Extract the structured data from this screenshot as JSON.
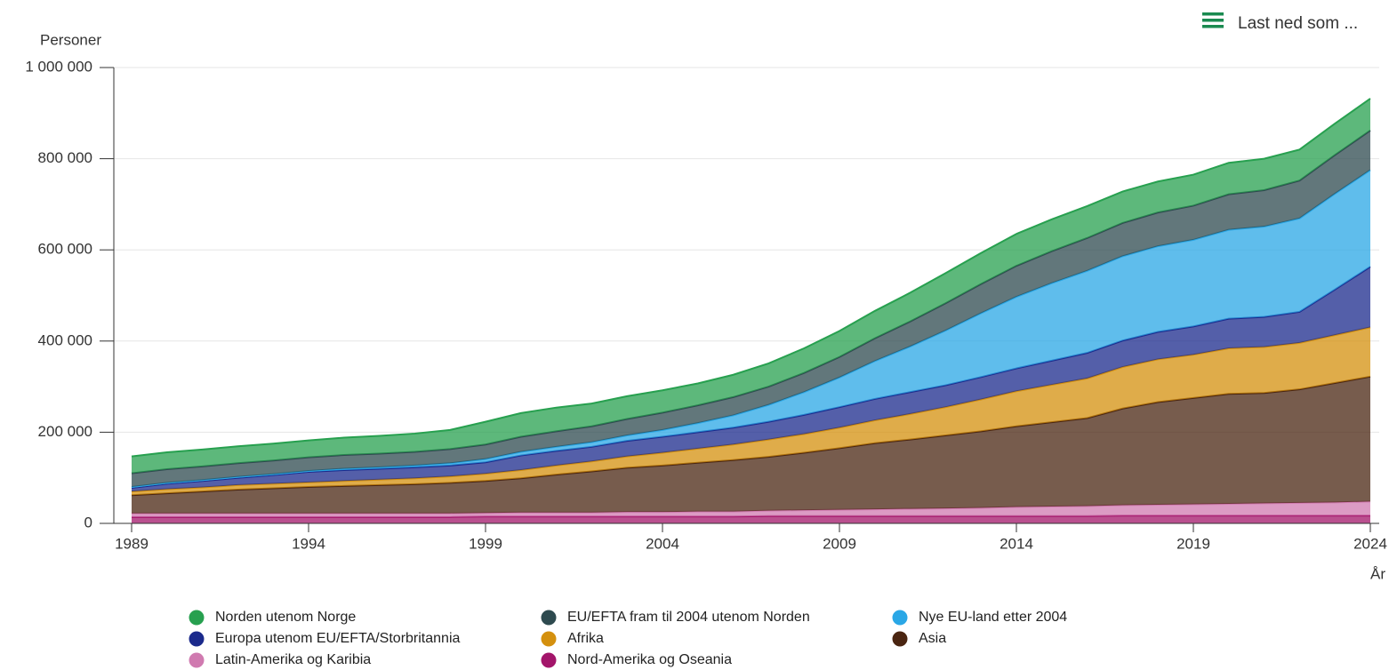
{
  "chart_data": {
    "type": "stacked_area",
    "y_label": "Personer",
    "x_label": "År",
    "button": "Last ned som ...",
    "x": [
      1989,
      1990,
      1991,
      1992,
      1993,
      1994,
      1995,
      1996,
      1997,
      1998,
      1999,
      2000,
      2001,
      2002,
      2003,
      2004,
      2005,
      2006,
      2007,
      2008,
      2009,
      2010,
      2011,
      2012,
      2013,
      2014,
      2015,
      2016,
      2017,
      2018,
      2019,
      2020,
      2021,
      2022,
      2023,
      2024
    ],
    "xlim": [
      1989,
      2024
    ],
    "xticks": [
      1989,
      1994,
      1999,
      2004,
      2009,
      2014,
      2019,
      2024
    ],
    "ylim": [
      0,
      1000000
    ],
    "yticks": [
      0,
      {
        "value": 200000,
        "label": "200 000"
      },
      {
        "value": 400000,
        "label": "400 000"
      },
      {
        "value": 600000,
        "label": "600 000"
      },
      {
        "value": 800000,
        "label": "800 000"
      },
      {
        "value": 1000000,
        "label": "1 000 000"
      }
    ],
    "grid": true,
    "series": [
      {
        "name": "Norden utenom Norge",
        "color": "#27a04f",
        "values": [
          37000,
          37000,
          37000,
          37000,
          37000,
          37000,
          38000,
          39000,
          40000,
          42000,
          50000,
          52000,
          52000,
          50000,
          50000,
          49000,
          48000,
          49000,
          51000,
          54000,
          57000,
          60000,
          63000,
          66000,
          68000,
          70000,
          70000,
          70000,
          69000,
          68000,
          68000,
          69000,
          69000,
          68000,
          69000,
          70000
        ]
      },
      {
        "name": "EU/EFTA fram til 2004 utenom Norden",
        "color": "#2e4a4f",
        "values": [
          30000,
          30000,
          30000,
          30000,
          30000,
          30000,
          30000,
          30000,
          30000,
          31000,
          32000,
          33000,
          34000,
          35000,
          36000,
          38000,
          39000,
          40000,
          40000,
          42000,
          45000,
          50000,
          55000,
          60000,
          64000,
          68000,
          70000,
          72000,
          73000,
          74000,
          75000,
          78000,
          80000,
          83000,
          85000,
          87000
        ]
      },
      {
        "name": "Nye EU-land etter 2004",
        "color": "#2aa7e6",
        "values": [
          2000,
          2000,
          2000,
          2000,
          2000,
          2000,
          3000,
          3000,
          4000,
          5000,
          7000,
          8000,
          9000,
          10000,
          12000,
          15000,
          20000,
          27000,
          37000,
          50000,
          65000,
          83000,
          100000,
          120000,
          140000,
          157000,
          170000,
          180000,
          185000,
          188000,
          190000,
          195000,
          198000,
          205000,
          210000,
          212000
        ]
      },
      {
        "name": "Europa utenom EU/EFTA/Storbritannia",
        "color": "#1b2a8c",
        "values": [
          8000,
          12000,
          14000,
          16000,
          19000,
          23000,
          24000,
          24000,
          24000,
          24000,
          25000,
          32000,
          32000,
          32000,
          34000,
          35000,
          36000,
          37000,
          39000,
          42000,
          45000,
          47000,
          48000,
          48000,
          49000,
          50000,
          53000,
          56000,
          58000,
          60000,
          62000,
          65000,
          66000,
          68000,
          100000,
          133000
        ]
      },
      {
        "name": "Afrika",
        "color": "#d4900e",
        "values": [
          8000,
          9000,
          9000,
          10000,
          10000,
          10000,
          11000,
          12000,
          13000,
          14000,
          16000,
          18000,
          20000,
          22000,
          25000,
          28000,
          31000,
          34000,
          38000,
          41000,
          45000,
          50000,
          56000,
          62000,
          70000,
          77000,
          82000,
          87000,
          91000,
          94000,
          95000,
          100000,
          101000,
          102000,
          105000,
          108000
        ]
      },
      {
        "name": "Asia",
        "color": "#4a2511",
        "values": [
          40000,
          44000,
          48000,
          52000,
          55000,
          58000,
          60000,
          62000,
          64000,
          67000,
          70000,
          75000,
          83000,
          90000,
          97000,
          102000,
          107000,
          113000,
          118000,
          126000,
          135000,
          145000,
          152000,
          160000,
          168000,
          177000,
          185000,
          193000,
          212000,
          225000,
          233000,
          241000,
          242000,
          249000,
          262000,
          274000
        ]
      },
      {
        "name": "Latin-Amerika og Karibia",
        "color": "#d07ab0",
        "values": [
          8000,
          8000,
          8000,
          8000,
          8000,
          8000,
          8000,
          8000,
          8000,
          8000,
          8000,
          9000,
          9000,
          9000,
          10000,
          10000,
          11000,
          11000,
          12000,
          13000,
          14000,
          15000,
          16000,
          17000,
          18000,
          20000,
          21000,
          22000,
          23000,
          24000,
          25000,
          26000,
          27000,
          28000,
          29000,
          31000
        ]
      },
      {
        "name": "Nord-Amerika og Oseania",
        "color": "#a3156a",
        "values": [
          14000,
          14000,
          14000,
          14000,
          14000,
          14000,
          14000,
          14000,
          14000,
          14000,
          15000,
          15000,
          15000,
          15000,
          15000,
          15000,
          15000,
          15000,
          16000,
          16000,
          16000,
          16000,
          16000,
          16000,
          16000,
          16000,
          16000,
          16000,
          17000,
          17000,
          17000,
          17000,
          17000,
          17000,
          17000,
          17000
        ]
      }
    ]
  }
}
